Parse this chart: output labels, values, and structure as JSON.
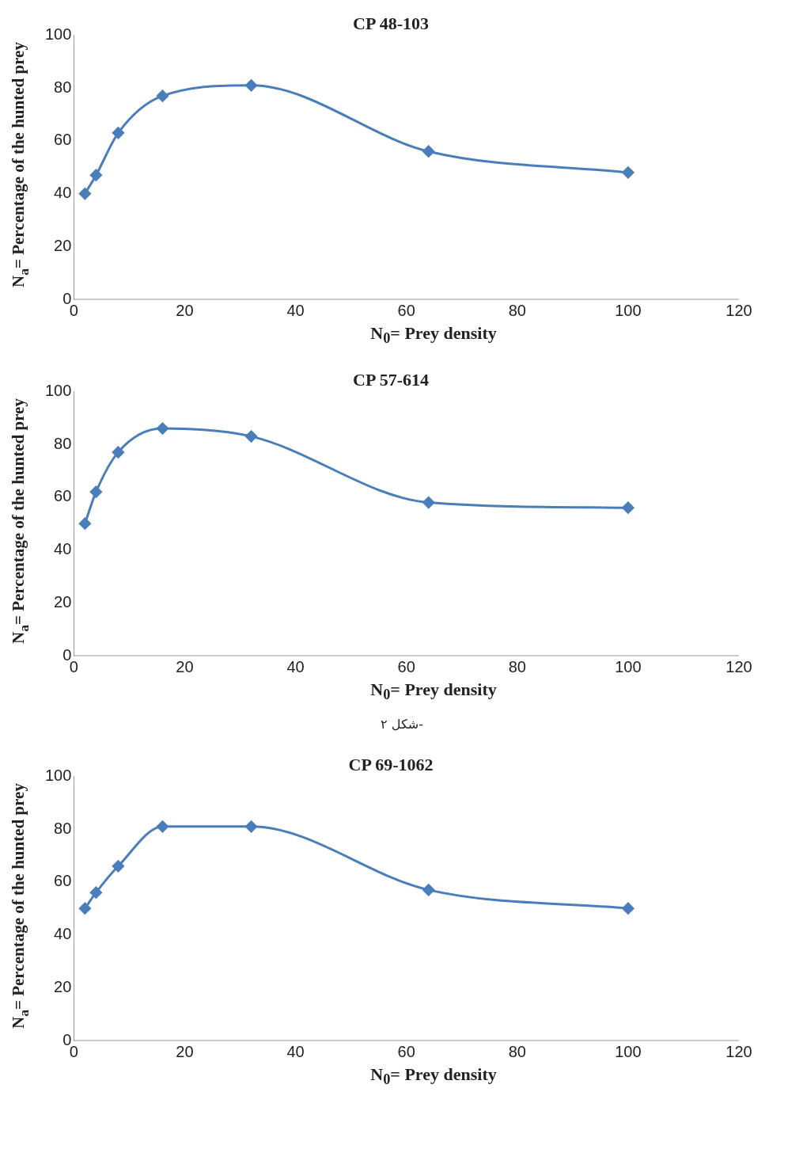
{
  "chart_data": [
    {
      "type": "line",
      "title": "CP 48-103",
      "xlabel": "N$_{0}$= Prey density",
      "ylabel": "N$_{a}$= Percentage of the hunted prey",
      "x": [
        2,
        4,
        8,
        16,
        32,
        64,
        100
      ],
      "series": [
        {
          "color": "#4a7ebb",
          "values": [
            40,
            47,
            63,
            77,
            81,
            56,
            48
          ]
        }
      ],
      "xlim": [
        0,
        120
      ],
      "xticks": [
        0,
        20,
        40,
        60,
        80,
        100,
        120
      ],
      "ylim": [
        0,
        100
      ],
      "yticks": [
        0,
        20,
        40,
        60,
        80,
        100
      ],
      "grid": false,
      "marker": "diamond",
      "line_style": "solid"
    },
    {
      "type": "line",
      "title": "CP 57-614",
      "xlabel": "N$_{0}$= Prey density",
      "ylabel": "N$_{a}$= Percentage of the hunted prey",
      "annotations": [
        "شکل ۲-"
      ],
      "x": [
        2,
        4,
        8,
        16,
        32,
        64,
        100
      ],
      "series": [
        {
          "color": "#4a7ebb",
          "values": [
            50,
            62,
            77,
            86,
            83,
            58,
            56
          ]
        }
      ],
      "xlim": [
        0,
        120
      ],
      "xticks": [
        0,
        20,
        40,
        60,
        80,
        100,
        120
      ],
      "ylim": [
        0,
        100
      ],
      "yticks": [
        0,
        20,
        40,
        60,
        80,
        100
      ],
      "grid": false,
      "marker": "diamond",
      "line_style": "solid"
    },
    {
      "type": "line",
      "title": "CP 69-1062",
      "xlabel": "N$_{0}$= Prey density",
      "ylabel": "N$_{a}$= Percentage of the hunted prey",
      "x": [
        2,
        4,
        8,
        16,
        32,
        64,
        100
      ],
      "series": [
        {
          "color": "#4a7ebb",
          "values": [
            50,
            56,
            66,
            81,
            81,
            57,
            50
          ]
        }
      ],
      "xlim": [
        0,
        120
      ],
      "xticks": [
        0,
        20,
        40,
        60,
        80,
        100,
        120
      ],
      "ylim": [
        0,
        100
      ],
      "yticks": [
        0,
        20,
        40,
        60,
        80,
        100
      ],
      "grid": false,
      "marker": "diamond",
      "line_style": "solid"
    }
  ]
}
